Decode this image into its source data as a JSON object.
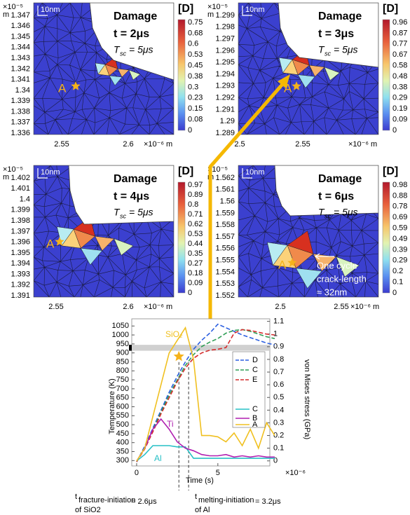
{
  "panels": [
    {
      "y_exponent": "×10⁻⁵",
      "y_unit": "m",
      "yticks": [
        1.347,
        1.346,
        1.345,
        1.344,
        1.343,
        1.342,
        1.341,
        1.34,
        1.339,
        1.338,
        1.337,
        1.336
      ],
      "xticks": [
        2.55,
        2.6
      ],
      "x_exponent": "×10⁻⁶ m",
      "scale_label": "10nm",
      "title": "Damage",
      "time": "t = 2μs",
      "tsc_symbol": "T",
      "tsc_subscript": "sc",
      "tsc_value": "= 5μs",
      "colorbar_label": "[D]",
      "colorbar_ticks": [
        0.75,
        0.68,
        0.6,
        0.53,
        0.45,
        0.38,
        0.3,
        0.23,
        0.15,
        0.08,
        0
      ],
      "point_label": "A"
    },
    {
      "y_exponent": "×10⁻⁵",
      "y_unit": "m",
      "yticks": [
        1.299,
        1.298,
        1.297,
        1.296,
        1.295,
        1.294,
        1.293,
        1.292,
        1.291,
        1.29,
        1.289
      ],
      "xticks": [
        2.5,
        2.55
      ],
      "x_exponent": "×10⁻⁶ m",
      "scale_label": "10nm",
      "title": "Damage",
      "time": "t = 3μs",
      "tsc_symbol": "T",
      "tsc_subscript": "sc",
      "tsc_value": "= 5μs",
      "colorbar_label": "[D]",
      "colorbar_ticks": [
        0.96,
        0.87,
        0.77,
        0.67,
        0.58,
        0.48,
        0.38,
        0.29,
        0.19,
        0.09,
        0
      ],
      "point_label": "A"
    },
    {
      "y_exponent": "×10⁻⁵",
      "y_unit": "m",
      "yticks": [
        1.402,
        1.401,
        1.4,
        1.399,
        1.398,
        1.397,
        1.396,
        1.395,
        1.394,
        1.393,
        1.392,
        1.391
      ],
      "xticks": [
        2.55,
        2.6
      ],
      "x_exponent": "×10⁻⁶ m",
      "scale_label": "10nm",
      "title": "Damage",
      "time": "t = 4μs",
      "tsc_symbol": "T",
      "tsc_subscript": "sc",
      "tsc_value": "= 5μs",
      "colorbar_label": "[D]",
      "colorbar_ticks": [
        0.97,
        0.89,
        0.8,
        0.71,
        0.62,
        0.53,
        0.44,
        0.35,
        0.27,
        0.18,
        0.09,
        0
      ],
      "point_label": "A"
    },
    {
      "y_exponent": "×10⁻⁵",
      "y_unit": "m",
      "yticks": [
        1.562,
        1.561,
        1.56,
        1.559,
        1.558,
        1.557,
        1.556,
        1.555,
        1.554,
        1.553,
        1.552
      ],
      "xticks": [
        2.5,
        2.55
      ],
      "x_exponent": "×10⁻⁶ m",
      "scale_label": "10nm",
      "title": "Damage",
      "time": "t = 6μs",
      "tsc_symbol": "T",
      "tsc_subscript": "sc",
      "tsc_value": "= 5μs",
      "colorbar_label": "[D]",
      "colorbar_ticks": [
        0.98,
        0.88,
        0.78,
        0.69,
        0.59,
        0.49,
        0.39,
        0.29,
        0.2,
        0.1,
        0
      ],
      "point_label": "A",
      "note": [
        "One cycle",
        "crack-length",
        "≈ 32nm"
      ]
    }
  ],
  "chart_data": {
    "type": "line",
    "x_label": "Time (s)",
    "x_exponent": "×10⁻⁶",
    "y_label": "Temperature (K)",
    "y2_label": "von Mises stress (GPa)",
    "x": [
      0,
      0.5,
      1,
      1.5,
      2,
      2.5,
      3,
      3.5,
      4,
      4.5,
      5,
      5.5,
      6,
      6.5,
      7,
      7.5,
      8,
      8.5
    ],
    "xlim": [
      -0.3,
      8.2
    ],
    "xticks": [
      0,
      5
    ],
    "ylim": [
      270,
      1090
    ],
    "yticks": [
      300,
      350,
      400,
      450,
      500,
      550,
      600,
      650,
      700,
      750,
      800,
      850,
      900,
      950,
      1000,
      1050
    ],
    "y2lim": [
      -0.04,
      1.12
    ],
    "y2ticks": [
      0,
      0.1,
      0.2,
      0.3,
      0.4,
      0.5,
      0.6,
      0.7,
      0.8,
      0.9,
      1,
      1.1
    ],
    "series": [
      {
        "name": "D",
        "color": "#2b5fe0",
        "style": "dashed",
        "values": [
          293,
          380,
          480,
          580,
          680,
          770,
          850,
          920,
          970,
          1010,
          1060,
          1040,
          1020,
          1000,
          985,
          970,
          955,
          945
        ]
      },
      {
        "name": "C",
        "color": "#2f9e55",
        "style": "dashed",
        "values": [
          293,
          370,
          470,
          570,
          665,
          750,
          830,
          890,
          935,
          960,
          980,
          1010,
          1025,
          1030,
          1020,
          1005,
          990,
          980
        ]
      },
      {
        "name": "E",
        "color": "#d42c2c",
        "style": "dashed",
        "values": [
          293,
          365,
          460,
          560,
          650,
          740,
          815,
          870,
          900,
          915,
          920,
          930,
          1010,
          1030,
          1025,
          1015,
          1005,
          1000
        ]
      },
      {
        "name": "C",
        "color": "#27c0c6",
        "style": "solid",
        "axis": "y2",
        "values": [
          0,
          0.05,
          0.12,
          0.12,
          0.12,
          0.11,
          0.11,
          0.02,
          0.02,
          0.02,
          0.02,
          0.02,
          0.02,
          0.02,
          0.02,
          0.02,
          0.02,
          0.02
        ]
      },
      {
        "name": "B",
        "color": "#b01fb0",
        "style": "solid",
        "axis": "y2",
        "values": [
          0,
          0.1,
          0.25,
          0.33,
          0.25,
          0.15,
          0.1,
          0.08,
          0.05,
          0.04,
          0.04,
          0.05,
          0.03,
          0.04,
          0.03,
          0.04,
          0.03,
          0.03
        ]
      },
      {
        "name": "A",
        "color": "#f0c020",
        "style": "solid",
        "axis": "y2",
        "values": [
          0,
          0.1,
          0.35,
          0.6,
          0.85,
          0.95,
          1.05,
          0.8,
          0.2,
          0.2,
          0.19,
          0.15,
          0.22,
          0.12,
          0.25,
          0.1,
          0.3,
          0.2
        ]
      }
    ],
    "band": [
      912,
      945
    ],
    "star": {
      "x": 2.6,
      "y": 880
    },
    "vlines": [
      2.6,
      3.2
    ],
    "annotations": [
      {
        "text": "SiO₂",
        "color": "#f0c020"
      },
      {
        "text": "Ti",
        "color": "#b01fb0"
      },
      {
        "text": "Al",
        "color": "#27c0c6"
      }
    ]
  },
  "footnotes": [
    {
      "symbol": "t",
      "subscript": "fracture-initiation",
      "value": "= 2.6μs",
      "subject": "of SiO2"
    },
    {
      "symbol": "t",
      "subscript": "melting-initiation",
      "value": "= 3.2μs",
      "subject": "of Al"
    }
  ]
}
